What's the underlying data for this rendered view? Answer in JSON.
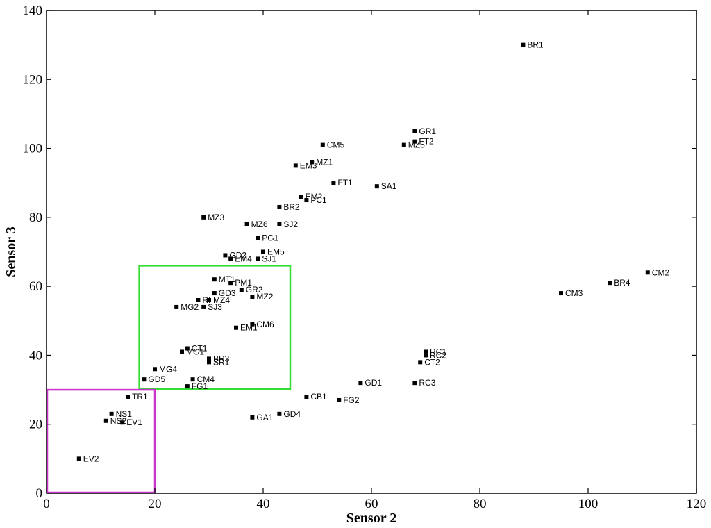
{
  "chart_data": {
    "type": "scatter",
    "xlabel": "Sensor 2",
    "ylabel": "Sensor 3",
    "xlim": [
      0,
      120
    ],
    "ylim": [
      0,
      140
    ],
    "xticks": [
      0,
      20,
      40,
      60,
      80,
      100,
      120
    ],
    "yticks": [
      0,
      20,
      40,
      60,
      80,
      100,
      120,
      140
    ],
    "grid": false,
    "marker_color": "#000000",
    "points": [
      {
        "label": "BR1",
        "x": 88,
        "y": 130
      },
      {
        "label": "GR1",
        "x": 68,
        "y": 105
      },
      {
        "label": "FT2",
        "x": 68,
        "y": 102
      },
      {
        "label": "MZ5",
        "x": 66,
        "y": 101
      },
      {
        "label": "CM5",
        "x": 51,
        "y": 101
      },
      {
        "label": "MZ1",
        "x": 49,
        "y": 96
      },
      {
        "label": "EM3",
        "x": 46,
        "y": 95
      },
      {
        "label": "FT1",
        "x": 53,
        "y": 90
      },
      {
        "label": "SA1",
        "x": 61,
        "y": 89
      },
      {
        "label": "EM2",
        "x": 47,
        "y": 86
      },
      {
        "label": "PC1",
        "x": 48,
        "y": 85
      },
      {
        "label": "BR2",
        "x": 43,
        "y": 83
      },
      {
        "label": "MZ3",
        "x": 29,
        "y": 80
      },
      {
        "label": "MZ6",
        "x": 37,
        "y": 78
      },
      {
        "label": "SJ2",
        "x": 43,
        "y": 78
      },
      {
        "label": "PG1",
        "x": 39,
        "y": 74
      },
      {
        "label": "EM5",
        "x": 40,
        "y": 70
      },
      {
        "label": "GD2",
        "x": 33,
        "y": 69
      },
      {
        "label": "EM4",
        "x": 34,
        "y": 68
      },
      {
        "label": "SJ1",
        "x": 39,
        "y": 68
      },
      {
        "label": "CM2",
        "x": 111,
        "y": 64
      },
      {
        "label": "BR4",
        "x": 104,
        "y": 61
      },
      {
        "label": "CM3",
        "x": 95,
        "y": 58
      },
      {
        "label": "MT1",
        "x": 31,
        "y": 62
      },
      {
        "label": "PM1",
        "x": 34,
        "y": 61
      },
      {
        "label": "GR2",
        "x": 36,
        "y": 59
      },
      {
        "label": "GD3",
        "x": 31,
        "y": 58
      },
      {
        "label": "MZ2",
        "x": 38,
        "y": 57
      },
      {
        "label": "MZ4",
        "x": 30,
        "y": 56
      },
      {
        "label": "RI",
        "x": 28,
        "y": 56
      },
      {
        "label": "SJ3",
        "x": 29,
        "y": 54
      },
      {
        "label": "MG2",
        "x": 24,
        "y": 54
      },
      {
        "label": "CM6",
        "x": 38,
        "y": 49
      },
      {
        "label": "EM1",
        "x": 35,
        "y": 48
      },
      {
        "label": "CT1",
        "x": 26,
        "y": 42
      },
      {
        "label": "MG1",
        "x": 25,
        "y": 41
      },
      {
        "label": "BR3",
        "x": 30,
        "y": 39
      },
      {
        "label": "SR1",
        "x": 30,
        "y": 38
      },
      {
        "label": "MG4",
        "x": 20,
        "y": 36
      },
      {
        "label": "GD5",
        "x": 18,
        "y": 33
      },
      {
        "label": "CM4",
        "x": 27,
        "y": 33
      },
      {
        "label": "FG1",
        "x": 26,
        "y": 31
      },
      {
        "label": "RC1",
        "x": 70,
        "y": 41
      },
      {
        "label": "RC2",
        "x": 70,
        "y": 40
      },
      {
        "label": "CT2",
        "x": 69,
        "y": 38
      },
      {
        "label": "GD1",
        "x": 58,
        "y": 32
      },
      {
        "label": "RC3",
        "x": 68,
        "y": 32
      },
      {
        "label": "CB1",
        "x": 48,
        "y": 28
      },
      {
        "label": "FG2",
        "x": 54,
        "y": 27
      },
      {
        "label": "GD4",
        "x": 43,
        "y": 23
      },
      {
        "label": "GA1",
        "x": 38,
        "y": 22
      },
      {
        "label": "TR1",
        "x": 15,
        "y": 28
      },
      {
        "label": "NS1",
        "x": 12,
        "y": 23
      },
      {
        "label": "NS2",
        "x": 11,
        "y": 21
      },
      {
        "label": "EV1",
        "x": 14,
        "y": 20.5
      },
      {
        "label": "EV2",
        "x": 6,
        "y": 10
      }
    ],
    "highlight_boxes": [
      {
        "name": "green-box",
        "color": "#33dd33",
        "x": [
          17,
          45
        ],
        "y": [
          30,
          66
        ]
      },
      {
        "name": "magenta-box",
        "color": "#cc33cc",
        "x": [
          0,
          20
        ],
        "y": [
          0,
          30
        ]
      }
    ]
  }
}
